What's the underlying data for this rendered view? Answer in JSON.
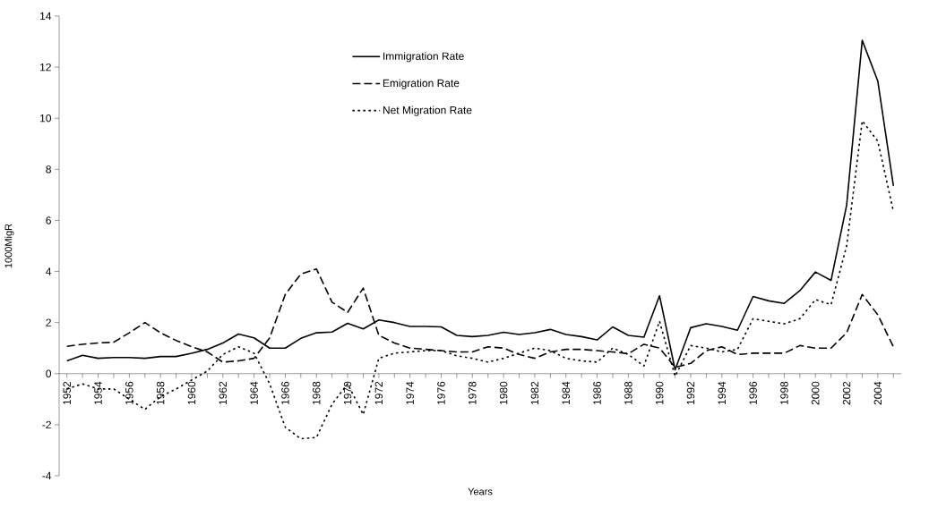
{
  "chart_data": {
    "type": "line",
    "xlabel": "Years",
    "ylabel": "1000MigR",
    "categories": [
      "1952",
      null,
      "1954",
      null,
      "1956",
      null,
      "1958",
      null,
      "1960",
      null,
      "1962",
      null,
      "1964",
      null,
      "1966",
      null,
      "1968",
      null,
      "1970",
      null,
      "1972",
      null,
      "1974",
      null,
      "1976",
      null,
      "1978",
      null,
      "1980",
      null,
      "1982",
      null,
      "1984",
      null,
      "1986",
      null,
      "1988",
      null,
      "1990",
      null,
      "1992",
      null,
      "1994",
      null,
      "1996",
      null,
      "1998",
      null,
      "2000",
      null,
      "2002",
      null,
      "2004",
      null
    ],
    "series": [
      {
        "name": "Immigration Rate",
        "color": "#000000",
        "line_style": "solid",
        "values": [
          0.5,
          0.72,
          0.6,
          0.63,
          0.63,
          0.6,
          0.67,
          0.67,
          0.8,
          0.95,
          1.2,
          1.55,
          1.4,
          1.0,
          1.0,
          1.38,
          1.6,
          1.63,
          1.97,
          1.75,
          2.1,
          2.0,
          1.85,
          1.85,
          1.83,
          1.5,
          1.45,
          1.5,
          1.62,
          1.53,
          1.6,
          1.73,
          1.53,
          1.45,
          1.32,
          1.83,
          1.5,
          1.43,
          3.05,
          0.15,
          1.8,
          1.95,
          1.85,
          1.7,
          3.02,
          2.85,
          2.75,
          3.25,
          3.98,
          3.65,
          6.6,
          13.05,
          11.45,
          7.35
        ]
      },
      {
        "name": "Emigration Rate",
        "color": "#000000",
        "line_style": "dashed",
        "values": [
          1.07,
          1.15,
          1.2,
          1.23,
          1.6,
          2.0,
          1.6,
          1.3,
          1.05,
          0.85,
          0.45,
          0.5,
          0.6,
          1.4,
          3.1,
          3.9,
          4.1,
          2.8,
          2.4,
          3.35,
          1.5,
          1.2,
          1.0,
          0.95,
          0.9,
          0.85,
          0.85,
          1.05,
          1.0,
          0.75,
          0.6,
          0.85,
          0.95,
          0.95,
          0.9,
          0.85,
          0.78,
          1.15,
          1.0,
          0.25,
          0.4,
          0.9,
          1.05,
          0.75,
          0.8,
          0.8,
          0.8,
          1.1,
          1.0,
          1.0,
          1.6,
          3.1,
          2.3,
          1.05
        ]
      },
      {
        "name": "Net Migration Rate",
        "color": "#000000",
        "line_style": "dotted",
        "values": [
          -0.6,
          -0.4,
          -0.6,
          -0.6,
          -1.0,
          -1.4,
          -0.9,
          -0.6,
          -0.25,
          0.1,
          0.75,
          1.05,
          0.8,
          -0.4,
          -2.1,
          -2.55,
          -2.5,
          -1.2,
          -0.4,
          -1.6,
          0.6,
          0.8,
          0.85,
          0.9,
          0.9,
          0.7,
          0.6,
          0.45,
          0.6,
          0.8,
          1.0,
          0.9,
          0.6,
          0.5,
          0.45,
          1.0,
          0.75,
          0.3,
          2.05,
          -0.1,
          1.1,
          1.0,
          0.85,
          0.95,
          2.15,
          2.05,
          1.95,
          2.15,
          2.9,
          2.7,
          5.0,
          9.9,
          9.1,
          6.35
        ]
      }
    ],
    "ylim": [
      -4,
      14
    ],
    "yticks": [
      -4,
      -2,
      0,
      2,
      4,
      6,
      8,
      10,
      12,
      14
    ],
    "grid": false,
    "legend": "top",
    "marker": "none"
  }
}
